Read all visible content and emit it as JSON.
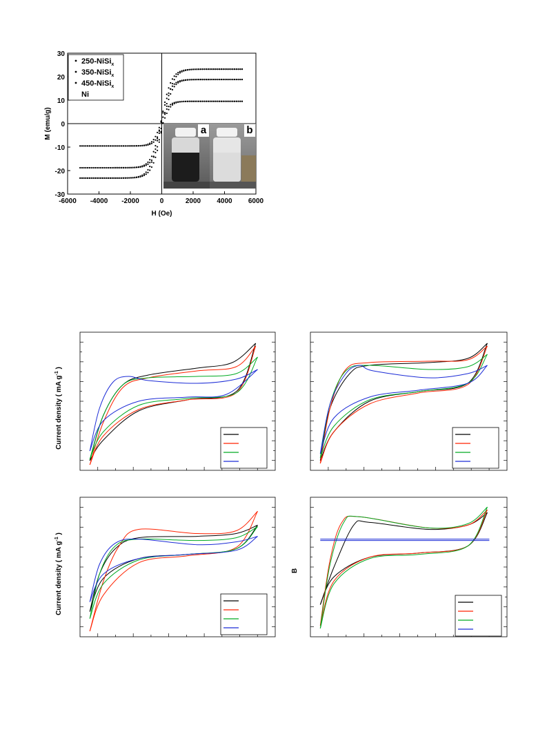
{
  "chart_data": [
    {
      "type": "scatter",
      "xlabel": "H (Oe)",
      "ylabel": "M (emu/g)",
      "xlim": [
        -6000,
        6000
      ],
      "ylim": [
        -30,
        30
      ],
      "xticks": [
        -6000,
        -4000,
        -2000,
        0,
        2000,
        4000,
        6000
      ],
      "yticks": [
        -30,
        -20,
        -10,
        0,
        10,
        20,
        30
      ],
      "legend_position": "top-left",
      "series": [
        {
          "name": "250-NiSi",
          "subscript": "x",
          "ms": 23.2,
          "hk": 650,
          "xmax": 5200
        },
        {
          "name": "350-NiSi",
          "subscript": "x",
          "ms": 18.8,
          "hk": 600,
          "xmax": 5200
        },
        {
          "name": "450-NiSi",
          "subscript": "x",
          "ms": 9.5,
          "hk": 500,
          "xmax": 5200
        },
        {
          "name": "Ni",
          "subscript": "",
          "ms": null,
          "hk": null,
          "xmax": null
        }
      ],
      "insets": [
        {
          "label": "a",
          "liquid": "#1c1c1c"
        },
        {
          "label": "b",
          "liquid": "#dcdcdc"
        }
      ]
    },
    {
      "type": "line",
      "ylabel": "Current density ( mA g",
      "ylabel_superscript": "-1",
      "ylabel_close": ")",
      "series_colors": [
        "#000000",
        "#ff2200",
        "#00aa22",
        "#1a2ad6"
      ]
    },
    {
      "type": "line",
      "series_colors": [
        "#000000",
        "#ff2200",
        "#00aa22",
        "#1a2ad6"
      ]
    },
    {
      "type": "line",
      "ylabel": "Current density ( mA g",
      "ylabel_superscript": "-1",
      "ylabel_close": ")",
      "series_colors": [
        "#000000",
        "#ff2200",
        "#00aa22",
        "#1a2ad6"
      ]
    },
    {
      "type": "line",
      "annotation": "B",
      "series_colors": [
        "#000000",
        "#ff2200",
        "#00aa22",
        "#1a2ad6"
      ]
    }
  ]
}
